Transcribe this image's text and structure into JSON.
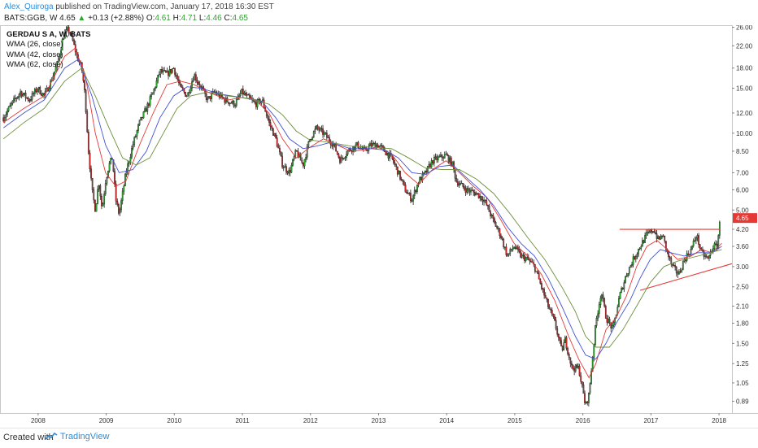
{
  "header": {
    "author": "Alex_Quiroga",
    "published_text": "published on TradingView.com, January 17, 2018 16:30 EST"
  },
  "quote": {
    "symbol": "BATS:GGB, W",
    "last": "4.65",
    "arrow": "▲",
    "change": "+0.13 (+2.88%)",
    "o_label": "O:",
    "o": "4.61",
    "h_label": "H:",
    "h": "4.71",
    "l_label": "L:",
    "l": "4.46",
    "c_label": "C:",
    "c": "4.65"
  },
  "legend": {
    "title": "GERDAU S A, W, BATS",
    "items": [
      "WMA (26, close)",
      "WMA (42, close)",
      "WMA (62, close)"
    ]
  },
  "footer": {
    "created_with": "Created with",
    "brand": "TradingView"
  },
  "colors": {
    "up": "#2ea52e",
    "down": "#c62828",
    "wick": "#1a1a1a",
    "wma26": "#e53935",
    "wma42": "#3f51d6",
    "wma62": "#6b8e3a",
    "trendline": "#e53935",
    "price_tag": "#e53935"
  },
  "chart_data": {
    "type": "candlestick",
    "symbol": "GERDAU S A, W, BATS",
    "y_scale": "log",
    "ylim": [
      0.8,
      26.5
    ],
    "y_ticks": [
      "26.00",
      "22.00",
      "18.00",
      "15.00",
      "12.00",
      "10.00",
      "8.50",
      "7.00",
      "6.00",
      "5.00",
      "4.20",
      "3.60",
      "3.00",
      "2.50",
      "2.10",
      "1.80",
      "1.50",
      "1.25",
      "1.05",
      "0.89"
    ],
    "x_ticks": [
      "2008",
      "2009",
      "2010",
      "2011",
      "2012",
      "2013",
      "2014",
      "2015",
      "2016",
      "2017",
      "2018"
    ],
    "xlim": [
      2007.45,
      2018.2
    ],
    "last_price_label": "4.65",
    "series": [
      {
        "name": "Price",
        "points": [
          [
            2007.5,
            11.5
          ],
          [
            2007.62,
            13.0
          ],
          [
            2007.75,
            14.5
          ],
          [
            2007.88,
            13.5
          ],
          [
            2008.0,
            15.0
          ],
          [
            2008.1,
            14.0
          ],
          [
            2008.2,
            16.0
          ],
          [
            2008.3,
            19.0
          ],
          [
            2008.38,
            24.0
          ],
          [
            2008.45,
            25.5
          ],
          [
            2008.5,
            24.0
          ],
          [
            2008.58,
            20.0
          ],
          [
            2008.65,
            18.0
          ],
          [
            2008.7,
            14.0
          ],
          [
            2008.75,
            8.5
          ],
          [
            2008.8,
            6.0
          ],
          [
            2008.85,
            5.0
          ],
          [
            2008.9,
            6.5
          ],
          [
            2008.95,
            5.0
          ],
          [
            2009.0,
            6.5
          ],
          [
            2009.05,
            7.5
          ],
          [
            2009.1,
            8.0
          ],
          [
            2009.15,
            5.5
          ],
          [
            2009.2,
            4.8
          ],
          [
            2009.3,
            7.0
          ],
          [
            2009.4,
            9.0
          ],
          [
            2009.5,
            11.0
          ],
          [
            2009.6,
            12.5
          ],
          [
            2009.7,
            14.5
          ],
          [
            2009.8,
            17.5
          ],
          [
            2009.9,
            17.0
          ],
          [
            2010.0,
            18.0
          ],
          [
            2010.1,
            15.0
          ],
          [
            2010.2,
            14.0
          ],
          [
            2010.3,
            17.0
          ],
          [
            2010.35,
            16.0
          ],
          [
            2010.5,
            13.5
          ],
          [
            2010.6,
            14.5
          ],
          [
            2010.75,
            13.5
          ],
          [
            2010.9,
            13.0
          ],
          [
            2011.0,
            14.5
          ],
          [
            2011.2,
            13.0
          ],
          [
            2011.3,
            13.5
          ],
          [
            2011.4,
            11.0
          ],
          [
            2011.5,
            9.5
          ],
          [
            2011.6,
            7.5
          ],
          [
            2011.7,
            7.0
          ],
          [
            2011.8,
            8.5
          ],
          [
            2011.9,
            7.5
          ],
          [
            2012.0,
            9.5
          ],
          [
            2012.1,
            10.5
          ],
          [
            2012.2,
            10.0
          ],
          [
            2012.35,
            9.0
          ],
          [
            2012.45,
            7.8
          ],
          [
            2012.55,
            8.5
          ],
          [
            2012.7,
            9.0
          ],
          [
            2012.8,
            8.5
          ],
          [
            2012.9,
            9.0
          ],
          [
            2013.0,
            9.0
          ],
          [
            2013.1,
            8.5
          ],
          [
            2013.2,
            8.0
          ],
          [
            2013.3,
            7.0
          ],
          [
            2013.4,
            6.0
          ],
          [
            2013.5,
            5.5
          ],
          [
            2013.6,
            6.5
          ],
          [
            2013.7,
            7.0
          ],
          [
            2013.8,
            7.8
          ],
          [
            2013.9,
            8.0
          ],
          [
            2014.0,
            8.2
          ],
          [
            2014.1,
            7.5
          ],
          [
            2014.15,
            6.5
          ],
          [
            2014.3,
            6.0
          ],
          [
            2014.45,
            5.8
          ],
          [
            2014.55,
            5.5
          ],
          [
            2014.6,
            5.2
          ],
          [
            2014.7,
            4.5
          ],
          [
            2014.8,
            4.0
          ],
          [
            2014.9,
            3.3
          ],
          [
            2015.0,
            3.6
          ],
          [
            2015.1,
            3.3
          ],
          [
            2015.2,
            3.2
          ],
          [
            2015.3,
            3.0
          ],
          [
            2015.4,
            2.5
          ],
          [
            2015.5,
            2.1
          ],
          [
            2015.6,
            1.8
          ],
          [
            2015.7,
            1.4
          ],
          [
            2015.75,
            1.55
          ],
          [
            2015.85,
            1.2
          ],
          [
            2015.95,
            1.2
          ],
          [
            2016.05,
            0.85
          ],
          [
            2016.1,
            0.95
          ],
          [
            2016.15,
            1.3
          ],
          [
            2016.2,
            1.8
          ],
          [
            2016.28,
            2.4
          ],
          [
            2016.35,
            1.9
          ],
          [
            2016.45,
            1.7
          ],
          [
            2016.55,
            2.3
          ],
          [
            2016.65,
            2.8
          ],
          [
            2016.75,
            3.2
          ],
          [
            2016.85,
            3.6
          ],
          [
            2016.95,
            4.0
          ],
          [
            2017.05,
            4.2
          ],
          [
            2017.12,
            3.8
          ],
          [
            2017.18,
            4.0
          ],
          [
            2017.25,
            3.4
          ],
          [
            2017.32,
            3.0
          ],
          [
            2017.42,
            2.8
          ],
          [
            2017.5,
            3.2
          ],
          [
            2017.6,
            3.5
          ],
          [
            2017.68,
            4.0
          ],
          [
            2017.75,
            3.4
          ],
          [
            2017.85,
            3.2
          ],
          [
            2017.92,
            3.6
          ],
          [
            2017.98,
            3.6
          ],
          [
            2018.03,
            4.65
          ]
        ]
      },
      {
        "name": "WMA (26, close)",
        "points": [
          [
            2007.5,
            11.0
          ],
          [
            2007.8,
            12.5
          ],
          [
            2008.1,
            14.0
          ],
          [
            2008.4,
            20.0
          ],
          [
            2008.55,
            21.5
          ],
          [
            2008.7,
            17.0
          ],
          [
            2008.85,
            10.0
          ],
          [
            2009.0,
            7.0
          ],
          [
            2009.15,
            6.2
          ],
          [
            2009.3,
            6.5
          ],
          [
            2009.5,
            9.0
          ],
          [
            2009.7,
            12.0
          ],
          [
            2009.9,
            15.5
          ],
          [
            2010.1,
            16.0
          ],
          [
            2010.3,
            15.5
          ],
          [
            2010.5,
            14.5
          ],
          [
            2010.8,
            13.5
          ],
          [
            2011.0,
            13.8
          ],
          [
            2011.2,
            13.5
          ],
          [
            2011.4,
            12.0
          ],
          [
            2011.6,
            9.5
          ],
          [
            2011.8,
            8.0
          ],
          [
            2012.0,
            8.8
          ],
          [
            2012.2,
            9.5
          ],
          [
            2012.4,
            9.0
          ],
          [
            2012.6,
            8.5
          ],
          [
            2012.8,
            8.6
          ],
          [
            2013.0,
            8.8
          ],
          [
            2013.2,
            8.3
          ],
          [
            2013.4,
            7.0
          ],
          [
            2013.6,
            6.3
          ],
          [
            2013.8,
            7.2
          ],
          [
            2014.0,
            7.8
          ],
          [
            2014.2,
            7.0
          ],
          [
            2014.4,
            6.2
          ],
          [
            2014.6,
            5.6
          ],
          [
            2014.8,
            4.6
          ],
          [
            2015.0,
            3.7
          ],
          [
            2015.2,
            3.3
          ],
          [
            2015.4,
            2.8
          ],
          [
            2015.6,
            2.2
          ],
          [
            2015.8,
            1.6
          ],
          [
            2015.95,
            1.3
          ],
          [
            2016.1,
            1.1
          ],
          [
            2016.2,
            1.25
          ],
          [
            2016.35,
            1.7
          ],
          [
            2016.5,
            1.9
          ],
          [
            2016.65,
            2.3
          ],
          [
            2016.8,
            3.0
          ],
          [
            2016.95,
            3.6
          ],
          [
            2017.1,
            3.8
          ],
          [
            2017.25,
            3.5
          ],
          [
            2017.4,
            3.2
          ],
          [
            2017.6,
            3.3
          ],
          [
            2017.75,
            3.5
          ],
          [
            2017.9,
            3.4
          ],
          [
            2018.05,
            3.7
          ]
        ]
      },
      {
        "name": "WMA (42, close)",
        "points": [
          [
            2007.5,
            10.5
          ],
          [
            2007.8,
            12.0
          ],
          [
            2008.1,
            13.5
          ],
          [
            2008.4,
            18.0
          ],
          [
            2008.6,
            19.5
          ],
          [
            2008.8,
            14.0
          ],
          [
            2009.0,
            9.0
          ],
          [
            2009.2,
            7.0
          ],
          [
            2009.4,
            7.2
          ],
          [
            2009.6,
            8.5
          ],
          [
            2009.8,
            11.5
          ],
          [
            2010.0,
            14.0
          ],
          [
            2010.2,
            15.2
          ],
          [
            2010.4,
            15.0
          ],
          [
            2010.7,
            14.2
          ],
          [
            2011.0,
            13.8
          ],
          [
            2011.3,
            13.3
          ],
          [
            2011.5,
            11.5
          ],
          [
            2011.7,
            9.5
          ],
          [
            2011.9,
            8.7
          ],
          [
            2012.1,
            8.9
          ],
          [
            2012.3,
            9.2
          ],
          [
            2012.6,
            8.7
          ],
          [
            2012.9,
            8.7
          ],
          [
            2013.1,
            8.6
          ],
          [
            2013.3,
            8.0
          ],
          [
            2013.5,
            7.0
          ],
          [
            2013.7,
            6.9
          ],
          [
            2013.9,
            7.4
          ],
          [
            2014.1,
            7.5
          ],
          [
            2014.3,
            6.7
          ],
          [
            2014.5,
            6.0
          ],
          [
            2014.7,
            5.2
          ],
          [
            2014.9,
            4.3
          ],
          [
            2015.1,
            3.7
          ],
          [
            2015.3,
            3.3
          ],
          [
            2015.5,
            2.7
          ],
          [
            2015.7,
            2.1
          ],
          [
            2015.9,
            1.6
          ],
          [
            2016.05,
            1.35
          ],
          [
            2016.2,
            1.3
          ],
          [
            2016.35,
            1.5
          ],
          [
            2016.5,
            1.8
          ],
          [
            2016.7,
            2.2
          ],
          [
            2016.85,
            2.7
          ],
          [
            2017.0,
            3.2
          ],
          [
            2017.15,
            3.5
          ],
          [
            2017.3,
            3.4
          ],
          [
            2017.5,
            3.3
          ],
          [
            2017.7,
            3.4
          ],
          [
            2017.9,
            3.4
          ],
          [
            2018.05,
            3.6
          ]
        ]
      },
      {
        "name": "WMA (62, close)",
        "points": [
          [
            2007.5,
            9.5
          ],
          [
            2007.8,
            11.0
          ],
          [
            2008.1,
            12.5
          ],
          [
            2008.4,
            16.0
          ],
          [
            2008.65,
            18.0
          ],
          [
            2008.85,
            14.0
          ],
          [
            2009.05,
            10.5
          ],
          [
            2009.25,
            8.0
          ],
          [
            2009.45,
            7.5
          ],
          [
            2009.65,
            8.0
          ],
          [
            2009.85,
            10.0
          ],
          [
            2010.05,
            12.5
          ],
          [
            2010.25,
            14.0
          ],
          [
            2010.5,
            14.5
          ],
          [
            2010.8,
            14.0
          ],
          [
            2011.1,
            13.7
          ],
          [
            2011.4,
            13.0
          ],
          [
            2011.6,
            11.8
          ],
          [
            2011.8,
            10.2
          ],
          [
            2012.0,
            9.4
          ],
          [
            2012.3,
            9.2
          ],
          [
            2012.6,
            8.9
          ],
          [
            2012.9,
            8.8
          ],
          [
            2013.2,
            8.7
          ],
          [
            2013.45,
            8.0
          ],
          [
            2013.7,
            7.3
          ],
          [
            2013.95,
            7.2
          ],
          [
            2014.2,
            7.2
          ],
          [
            2014.45,
            6.6
          ],
          [
            2014.7,
            5.8
          ],
          [
            2014.95,
            4.8
          ],
          [
            2015.2,
            3.9
          ],
          [
            2015.45,
            3.2
          ],
          [
            2015.7,
            2.5
          ],
          [
            2015.9,
            2.0
          ],
          [
            2016.05,
            1.6
          ],
          [
            2016.2,
            1.45
          ],
          [
            2016.4,
            1.45
          ],
          [
            2016.6,
            1.7
          ],
          [
            2016.8,
            2.1
          ],
          [
            2017.0,
            2.6
          ],
          [
            2017.2,
            3.0
          ],
          [
            2017.4,
            3.15
          ],
          [
            2017.6,
            3.25
          ],
          [
            2017.8,
            3.35
          ],
          [
            2018.05,
            3.5
          ]
        ]
      }
    ],
    "annotations": [
      {
        "type": "horizontal_line",
        "from": [
          2016.55,
          4.2
        ],
        "to": [
          2018.02,
          4.2
        ]
      },
      {
        "type": "trendline",
        "from": [
          2016.85,
          2.42
        ],
        "to": [
          2018.2,
          3.08
        ]
      }
    ]
  }
}
